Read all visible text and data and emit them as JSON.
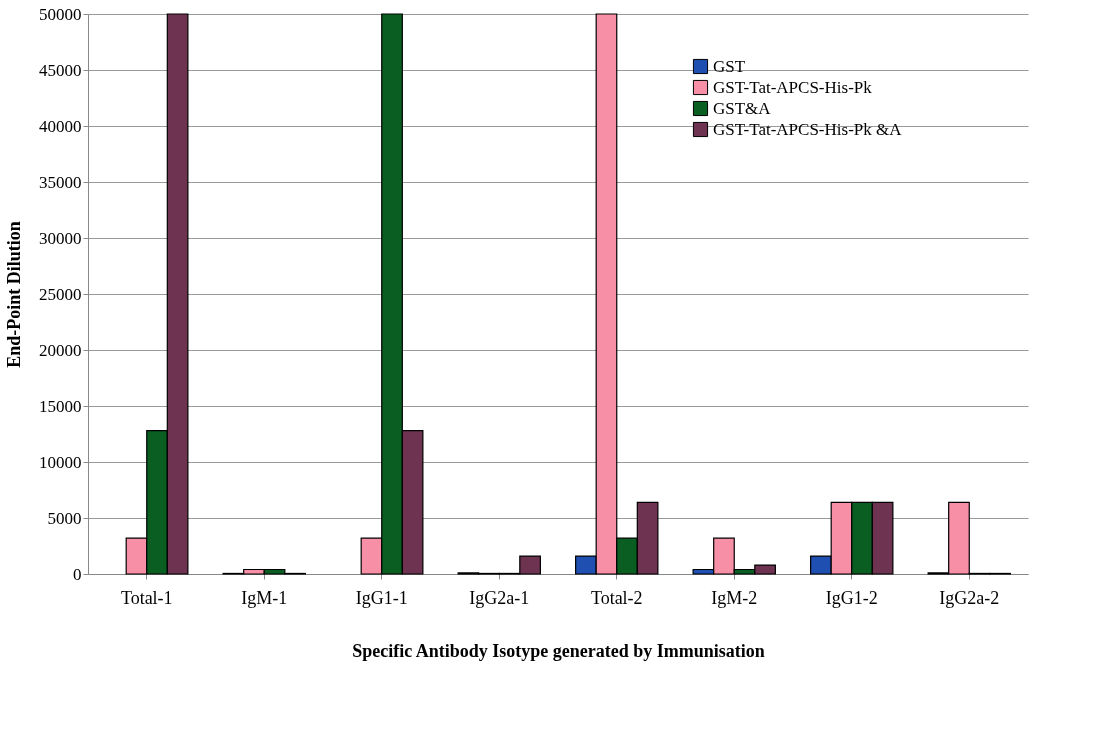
{
  "chart_data": {
    "type": "bar",
    "xlabel": "Specific Antibody Isotype generated by Immunisation",
    "ylabel": "End-Point Dilution",
    "categories": [
      "Total-1",
      "IgM-1",
      "IgG1-1",
      "IgG2a-1",
      "Total-2",
      "IgM-2",
      "IgG1-2",
      "IgG2a-2"
    ],
    "series": [
      {
        "name": "GST",
        "color": "#1f4fb0",
        "values": [
          null,
          50,
          null,
          100,
          1600,
          400,
          1600,
          100
        ]
      },
      {
        "name": "GST-Tat-APCS-His-Pk",
        "color": "#f78fa7",
        "values": [
          3200,
          400,
          3200,
          50,
          50000,
          3200,
          6400,
          6400
        ]
      },
      {
        "name": "GST&A",
        "color": "#0b5e22",
        "values": [
          12800,
          400,
          50000,
          50,
          3200,
          400,
          6400,
          50
        ]
      },
      {
        "name": "GST-Tat-APCS-His-Pk &A",
        "color": "#6e3350",
        "values": [
          50000,
          50,
          12800,
          1600,
          6400,
          800,
          6400,
          50
        ]
      }
    ],
    "ylim": [
      0,
      50000
    ],
    "yticks": [
      0,
      5000,
      10000,
      15000,
      20000,
      25000,
      30000,
      35000,
      40000,
      45000,
      50000
    ],
    "grid": "y",
    "legend": "top right"
  }
}
